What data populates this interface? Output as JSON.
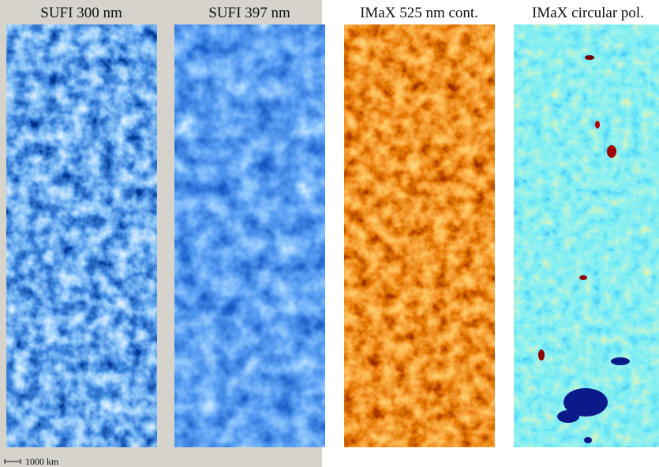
{
  "panels": [
    {
      "title": "SUFI 300 nm"
    },
    {
      "title": "SUFI 397 nm"
    },
    {
      "title": "IMaX 525 nm cont."
    },
    {
      "title": "IMaX circular pol."
    }
  ],
  "scale_bar": {
    "label": "1000 km"
  }
}
